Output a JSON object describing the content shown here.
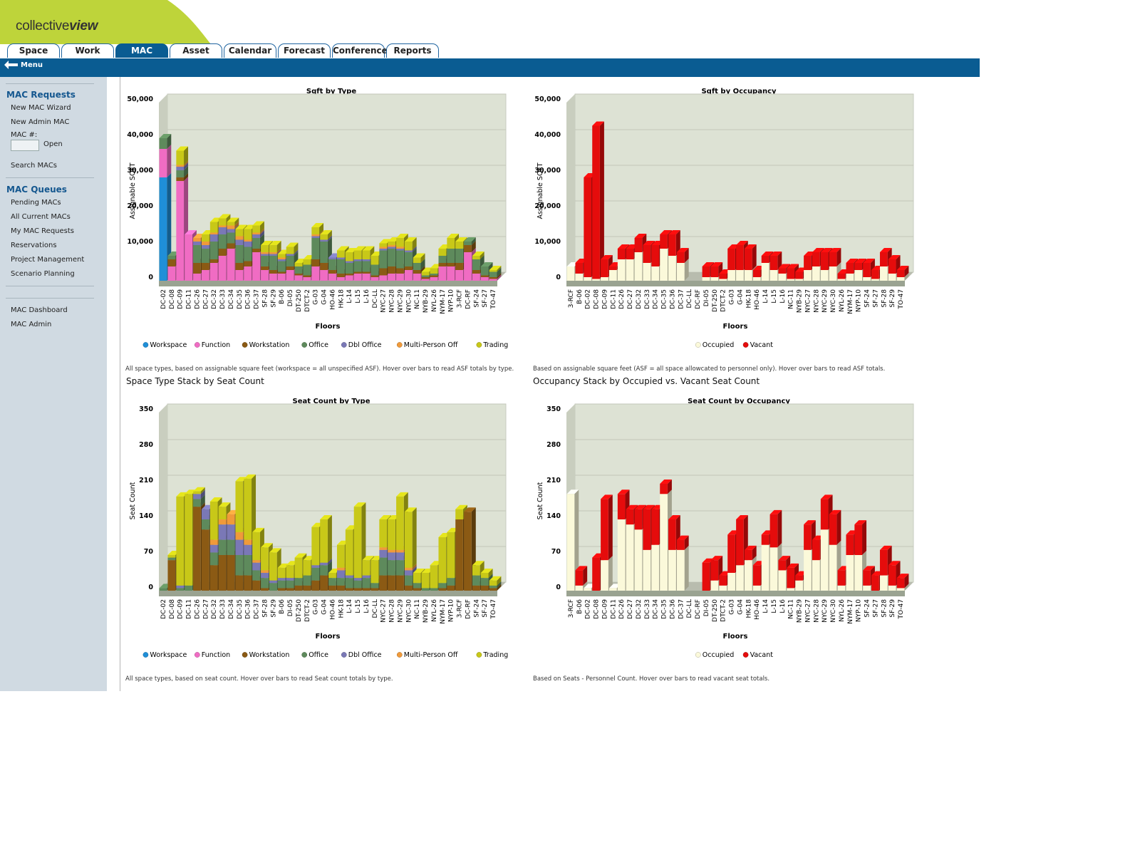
{
  "app": {
    "logo_plain": "collective",
    "logo_bold": "view"
  },
  "tabs": [
    {
      "label": "Space"
    },
    {
      "label": "Work"
    },
    {
      "label": "MAC",
      "active": true
    },
    {
      "label": "Asset"
    },
    {
      "label": "Calendar"
    },
    {
      "label": "Forecast"
    },
    {
      "label": "Conference"
    },
    {
      "label": "Reports"
    }
  ],
  "menu": {
    "label": "Menu"
  },
  "sidebar": {
    "requests_title": "MAC Requests",
    "new_wizard": "New MAC Wizard",
    "new_admin": "New Admin MAC",
    "mac_no_label": "MAC #:",
    "open_label": "Open",
    "search": "Search MACs",
    "queues_title": "MAC Queues",
    "queues": [
      "Pending MACs",
      "All Current MACs",
      "My MAC Requests",
      "Reservations",
      "Project Management",
      "Scenario Planning"
    ],
    "dashboard": "MAC Dashboard",
    "admin": "MAC Admin"
  },
  "sections": {
    "seat_type_title": "Space Type Stack by Seat Count",
    "seat_occ_title": "Occupancy Stack by Occupied vs. Vacant Seat Count"
  },
  "captions": {
    "sqft_type": "All space types, based on assignable square feet (workspace = all unspecified ASF). Hover over bars to read ASF totals by type.",
    "sqft_occ": "Based on assignable square feet (ASF = all space allowcated to personnel only). Hover over bars to read ASF totals.",
    "seat_type": "All space types, based on seat count. Hover over bars to read Seat count totals by type.",
    "seat_occ": "Based on Seats - Personnel Count. Hover over bars to read vacant seat totals."
  },
  "colors": {
    "Workspace": "#1f8fd8",
    "Function": "#f06cc3",
    "Workstation": "#8b5a14",
    "Office": "#5e8a5c",
    "Dbl Office": "#7a78b6",
    "Multi-Person Off": "#f09a3a",
    "Trading": "#c8c818",
    "Occupied": "#fbf9da",
    "Vacant": "#e50c0c",
    "plot_bg": "#dde2d4"
  },
  "chart_data": [
    {
      "type": "bar",
      "stacked": true,
      "title": "Sqft by Type",
      "xlabel": "Floors",
      "ylabel": "Assignable SQFT",
      "ylim": [
        0,
        50000
      ],
      "yticks": [
        "0",
        "10,000",
        "20,000",
        "30,000",
        "40,000",
        "50,000"
      ],
      "categories": [
        "DC-02",
        "DC-08",
        "DC-09",
        "DC-11",
        "DC-26",
        "DC-27",
        "DC-32",
        "DC-33",
        "DC-34",
        "DC-35",
        "DC-36",
        "DC-37",
        "SF-28",
        "SF-29",
        "B-06",
        "DI-05",
        "DT-250",
        "DTCT-2",
        "G-03",
        "G-04",
        "HO-46",
        "HK-18",
        "L-14",
        "L-15",
        "L-16",
        "DC-LL",
        "NYC-27",
        "NYC-28",
        "NYC-29",
        "NYC-30",
        "NC-11",
        "NYB-29",
        "NYL-26",
        "NYM-17",
        "NYP-10",
        "3-RCF",
        "DC-RF",
        "SF-24",
        "SF-27",
        "TO-47"
      ],
      "series": [
        {
          "name": "Workspace",
          "values": [
            29000,
            0,
            0,
            0,
            0,
            0,
            0,
            0,
            0,
            0,
            0,
            0,
            0,
            0,
            0,
            0,
            0,
            0,
            0,
            0,
            0,
            0,
            0,
            0,
            0,
            0,
            0,
            0,
            0,
            0,
            0,
            0,
            0,
            0,
            0,
            0,
            0,
            0,
            0,
            0
          ]
        },
        {
          "name": "Function",
          "values": [
            8000,
            4000,
            28000,
            13000,
            2000,
            3000,
            5000,
            7000,
            9000,
            3000,
            4000,
            8000,
            3000,
            2000,
            2000,
            3000,
            1500,
            1000,
            4000,
            3000,
            2000,
            1000,
            1500,
            2000,
            2000,
            1000,
            1500,
            2000,
            2000,
            3000,
            2000,
            500,
            1000,
            4000,
            4000,
            3000,
            8000,
            2000,
            1000,
            500
          ]
        },
        {
          "name": "Workstation",
          "values": [
            0,
            2000,
            1000,
            0,
            3000,
            2000,
            1000,
            2000,
            1500,
            2000,
            1500,
            1000,
            1000,
            1000,
            500,
            1000,
            500,
            500,
            2000,
            2000,
            1000,
            1000,
            500,
            500,
            500,
            500,
            2000,
            2000,
            1500,
            1000,
            1000,
            500,
            500,
            1000,
            1000,
            2000,
            2000,
            1000,
            500,
            500
          ]
        },
        {
          "name": "Office",
          "values": [
            3000,
            1000,
            2000,
            0,
            5000,
            4000,
            5000,
            4000,
            3000,
            5000,
            4000,
            3000,
            3000,
            4000,
            3000,
            3000,
            2000,
            3000,
            6000,
            6000,
            3000,
            4000,
            3000,
            3000,
            3000,
            3000,
            5000,
            5000,
            5000,
            4000,
            2000,
            500,
            500,
            2000,
            4000,
            4000,
            1000,
            3000,
            2500,
            1500
          ]
        },
        {
          "name": "Dbl Office",
          "values": [
            0,
            0,
            1000,
            0,
            1000,
            1000,
            2000,
            2000,
            1000,
            1500,
            1500,
            1000,
            500,
            500,
            500,
            500,
            0,
            0,
            500,
            500,
            500,
            500,
            500,
            500,
            500,
            0,
            500,
            500,
            500,
            500,
            0,
            0,
            0,
            0,
            0,
            0,
            0,
            0,
            0,
            0
          ]
        },
        {
          "name": "Multi-Person Off",
          "values": [
            0,
            0,
            500,
            0,
            1000,
            1000,
            500,
            500,
            1000,
            1000,
            500,
            500,
            500,
            500,
            500,
            0,
            0,
            0,
            500,
            0,
            0,
            0,
            0,
            0,
            0,
            0,
            500,
            500,
            500,
            0,
            0,
            0,
            0,
            0,
            0,
            0,
            0,
            0,
            0,
            0
          ]
        },
        {
          "name": "Trading",
          "values": [
            0,
            0,
            4000,
            0,
            0,
            2000,
            3000,
            2000,
            1000,
            2000,
            3000,
            2000,
            2000,
            2000,
            1000,
            2000,
            1000,
            1500,
            2000,
            1500,
            0,
            2000,
            2500,
            2500,
            2500,
            2500,
            1000,
            1000,
            2500,
            2500,
            1500,
            1000,
            1500,
            2000,
            3000,
            2000,
            0,
            1000,
            0,
            500
          ]
        }
      ]
    },
    {
      "type": "bar",
      "stacked": true,
      "title": "Sqft by Occupancy",
      "xlabel": "Floors",
      "ylabel": "Assignable SQFT",
      "ylim": [
        0,
        50000
      ],
      "yticks": [
        "0",
        "10,000",
        "20,000",
        "30,000",
        "40,000",
        "50,000"
      ],
      "categories": [
        "3-RCF",
        "B-06",
        "DC-02",
        "DC-08",
        "DC-09",
        "DC-11",
        "DC-26",
        "DC-27",
        "DC-32",
        "DC-33",
        "DC-34",
        "DC-35",
        "DC-36",
        "DC-37",
        "DC-LL",
        "DC-RF",
        "DI-05",
        "DT-250",
        "DTCT-2",
        "G-03",
        "G-04",
        "HK-18",
        "HO-46",
        "L-14",
        "L-15",
        "L-16",
        "NC-11",
        "NYB-29",
        "NYC-27",
        "NYC-28",
        "NYC-29",
        "NYC-30",
        "NYL-26",
        "NYM-17",
        "NYP-10",
        "SF-24",
        "SF-27",
        "SF-28",
        "SF-29",
        "TO-47"
      ],
      "series": [
        {
          "name": "Occupied",
          "values": [
            4000,
            2000,
            1000,
            500,
            1000,
            3000,
            6000,
            6000,
            8000,
            5000,
            4000,
            9000,
            7000,
            5000,
            0,
            0,
            1000,
            1000,
            500,
            3000,
            3000,
            3000,
            1000,
            5000,
            3000,
            2000,
            500,
            500,
            3000,
            4000,
            3000,
            4000,
            500,
            2000,
            3000,
            1000,
            500,
            4000,
            2000,
            1000
          ]
        },
        {
          "name": "Vacant",
          "values": [
            0,
            3000,
            28000,
            43000,
            5000,
            1000,
            3000,
            3000,
            4000,
            5000,
            6000,
            4000,
            6000,
            3000,
            0,
            0,
            3000,
            3000,
            1500,
            6000,
            7000,
            6000,
            2000,
            2000,
            4000,
            1500,
            3000,
            2000,
            4000,
            4000,
            5000,
            4000,
            1500,
            3000,
            2000,
            4000,
            2500,
            4000,
            4000,
            2000
          ]
        }
      ]
    },
    {
      "type": "bar",
      "stacked": true,
      "title": "Seat Count by Type",
      "xlabel": "Floors",
      "ylabel": "Seat Count",
      "ylim": [
        0,
        350
      ],
      "yticks": [
        "0",
        "70",
        "140",
        "210",
        "280",
        "350"
      ],
      "categories": [
        "DC-02",
        "DC-08",
        "DC-09",
        "DC-11",
        "DC-26",
        "DC-27",
        "DC-32",
        "DC-33",
        "DC-34",
        "DC-35",
        "DC-36",
        "DC-37",
        "SF-28",
        "SF-29",
        "B-06",
        "DI-05",
        "DT-250",
        "DTCT-2",
        "G-03",
        "G-04",
        "HO-46",
        "HK-18",
        "L-14",
        "L-15",
        "L-16",
        "DC-LL",
        "NYC-27",
        "NYC-28",
        "NYC-29",
        "NYC-30",
        "NC-11",
        "NYB-29",
        "NYL-26",
        "NYM-17",
        "NYP-10",
        "3-RCF",
        "DC-RF",
        "SF-24",
        "SF-27",
        "TO-47"
      ],
      "series": [
        {
          "name": "Workspace",
          "values": [
            0,
            0,
            0,
            0,
            0,
            0,
            0,
            0,
            0,
            0,
            0,
            0,
            0,
            0,
            0,
            0,
            0,
            0,
            0,
            0,
            0,
            0,
            0,
            0,
            0,
            0,
            0,
            0,
            0,
            0,
            0,
            0,
            0,
            0,
            0,
            0,
            0,
            0,
            0,
            0
          ]
        },
        {
          "name": "Function",
          "values": [
            0,
            0,
            0,
            0,
            0,
            0,
            0,
            0,
            0,
            0,
            0,
            0,
            0,
            0,
            0,
            0,
            0,
            0,
            0,
            0,
            0,
            0,
            0,
            0,
            0,
            0,
            0,
            0,
            0,
            0,
            0,
            0,
            0,
            0,
            0,
            0,
            0,
            0,
            0,
            0
          ]
        },
        {
          "name": "Workstation",
          "values": [
            0,
            60,
            0,
            0,
            165,
            120,
            50,
            70,
            70,
            30,
            30,
            20,
            5,
            0,
            5,
            5,
            10,
            10,
            20,
            30,
            10,
            10,
            5,
            5,
            5,
            5,
            30,
            30,
            30,
            10,
            5,
            0,
            0,
            5,
            10,
            140,
            155,
            10,
            10,
            5
          ]
        },
        {
          "name": "Office",
          "values": [
            5,
            5,
            5,
            10,
            15,
            20,
            25,
            30,
            30,
            40,
            40,
            20,
            20,
            15,
            15,
            15,
            15,
            20,
            25,
            20,
            15,
            15,
            20,
            15,
            20,
            10,
            35,
            30,
            30,
            20,
            10,
            5,
            5,
            10,
            15,
            0,
            0,
            20,
            15,
            5
          ]
        },
        {
          "name": "Dbl Office",
          "values": [
            0,
            0,
            5,
            0,
            10,
            20,
            15,
            30,
            30,
            30,
            20,
            15,
            10,
            5,
            5,
            5,
            0,
            0,
            5,
            5,
            0,
            15,
            5,
            5,
            5,
            0,
            15,
            15,
            15,
            10,
            0,
            0,
            0,
            0,
            0,
            0,
            0,
            0,
            0,
            0
          ]
        },
        {
          "name": "Multi-Person Off",
          "values": [
            0,
            0,
            0,
            0,
            0,
            0,
            10,
            10,
            20,
            15,
            10,
            5,
            5,
            0,
            0,
            0,
            0,
            0,
            0,
            0,
            0,
            5,
            0,
            0,
            0,
            0,
            5,
            5,
            5,
            5,
            0,
            0,
            0,
            0,
            0,
            0,
            0,
            0,
            0,
            0
          ]
        },
        {
          "name": "Trading",
          "values": [
            0,
            5,
            175,
            180,
            5,
            0,
            75,
            25,
            0,
            100,
            120,
            55,
            45,
            55,
            20,
            25,
            40,
            30,
            75,
            85,
            10,
            45,
            90,
            140,
            30,
            45,
            55,
            60,
            105,
            110,
            20,
            30,
            45,
            90,
            90,
            20,
            0,
            20,
            10,
            10
          ]
        }
      ]
    },
    {
      "type": "bar",
      "stacked": true,
      "title": "Seat Count by Occupancy",
      "xlabel": "Floors",
      "ylabel": "Seat Count",
      "ylim": [
        0,
        350
      ],
      "yticks": [
        "0",
        "70",
        "140",
        "210",
        "280",
        "350"
      ],
      "categories": [
        "3-RCF",
        "B-06",
        "DC-02",
        "DC-08",
        "DC-09",
        "DC-11",
        "DC-26",
        "DC-27",
        "DC-32",
        "DC-33",
        "DC-34",
        "DC-35",
        "DC-36",
        "DC-37",
        "DC-LL",
        "DC-RF",
        "DI-05",
        "DT-250",
        "DTCT-2",
        "G-03",
        "G-04",
        "HK-18",
        "HO-46",
        "L-14",
        "L-15",
        "L-16",
        "NC-11",
        "NYB-29",
        "NYC-27",
        "NYC-28",
        "NYC-29",
        "NYC-30",
        "NYL-26",
        "NYM-17",
        "NYP-10",
        "SF-24",
        "SF-27",
        "SF-28",
        "SF-29",
        "TO-47"
      ],
      "series": [
        {
          "name": "Occupied",
          "values": [
            190,
            10,
            5,
            0,
            60,
            5,
            140,
            130,
            120,
            80,
            90,
            190,
            80,
            80,
            0,
            0,
            0,
            20,
            10,
            35,
            50,
            60,
            10,
            90,
            85,
            40,
            5,
            20,
            80,
            60,
            120,
            90,
            10,
            70,
            70,
            10,
            0,
            30,
            10,
            5
          ]
        },
        {
          "name": "Vacant",
          "values": [
            0,
            30,
            0,
            65,
            120,
            0,
            50,
            30,
            40,
            80,
            70,
            20,
            60,
            20,
            0,
            0,
            55,
            40,
            20,
            75,
            90,
            20,
            40,
            20,
            65,
            20,
            40,
            10,
            50,
            40,
            60,
            60,
            30,
            40,
            60,
            30,
            30,
            50,
            40,
            20
          ]
        }
      ]
    }
  ]
}
